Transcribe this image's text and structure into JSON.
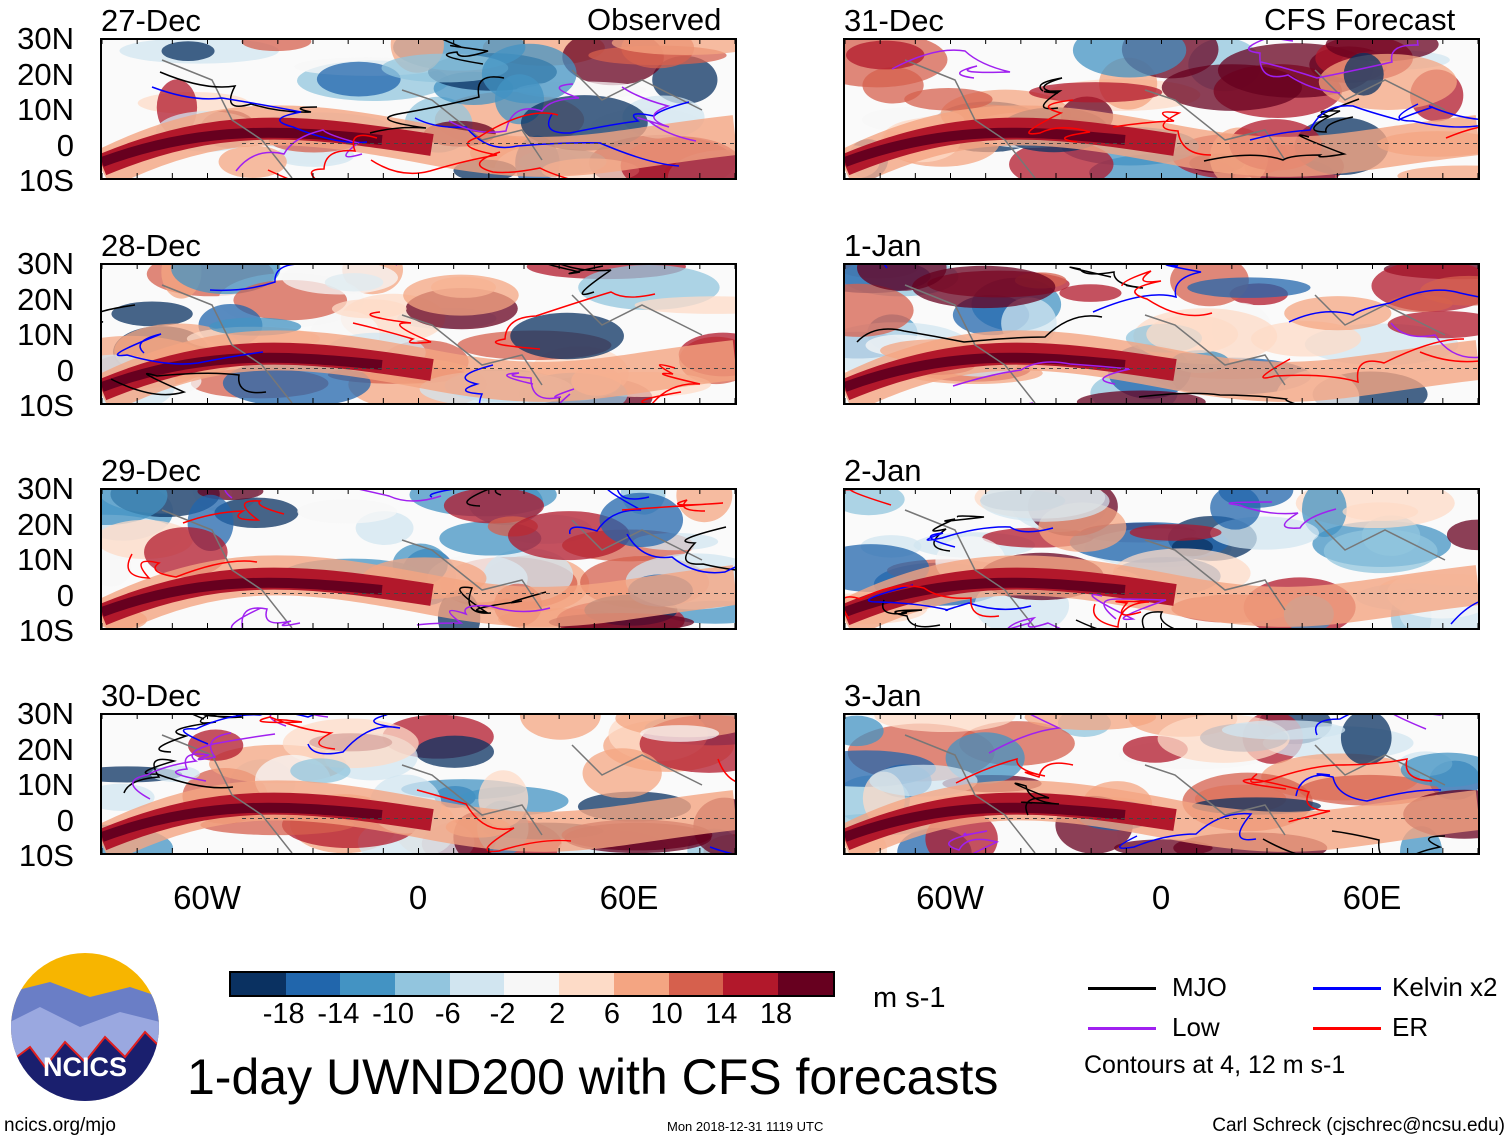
{
  "column_titles": {
    "left": "Observed",
    "right": "CFS Forecast"
  },
  "panels": [
    {
      "date": "27-Dec",
      "column": "left"
    },
    {
      "date": "28-Dec",
      "column": "left"
    },
    {
      "date": "29-Dec",
      "column": "left"
    },
    {
      "date": "30-Dec",
      "column": "left"
    },
    {
      "date": "31-Dec",
      "column": "right"
    },
    {
      "date": "1-Jan",
      "column": "right"
    },
    {
      "date": "2-Jan",
      "column": "right"
    },
    {
      "date": "3-Jan",
      "column": "right"
    }
  ],
  "lat_labels": [
    "30N",
    "20N",
    "10N",
    "0",
    "10S"
  ],
  "lon_labels": [
    "60W",
    "0",
    "60E"
  ],
  "colorbar": {
    "colors": [
      "#0a3161",
      "#2166ac",
      "#4393c3",
      "#92c5de",
      "#d1e5f0",
      "#f7f7f7",
      "#fddbc7",
      "#f4a582",
      "#d6604d",
      "#b2182b",
      "#67001f"
    ],
    "ticks": [
      "-18",
      "-14",
      "-10",
      "-6",
      "-2",
      "2",
      "6",
      "10",
      "14",
      "18"
    ],
    "units": "m s-1"
  },
  "legend": {
    "items": [
      {
        "label": "MJO",
        "color": "#000000"
      },
      {
        "label": "Kelvin x2",
        "color": "#0000ff"
      },
      {
        "label": "Low",
        "color": "#a020f0"
      },
      {
        "label": "ER",
        "color": "#ff0000"
      }
    ],
    "note": "Contours at 4, 12 m s-1"
  },
  "logo_text": "NCICS",
  "title": "1-day UWND200 with CFS forecasts",
  "footer": {
    "left": "ncics.org/mjo",
    "center": "Mon 2018-12-31 1119 UTC",
    "right": "Carl Schreck (cjschrec@ncsu.edu)"
  }
}
